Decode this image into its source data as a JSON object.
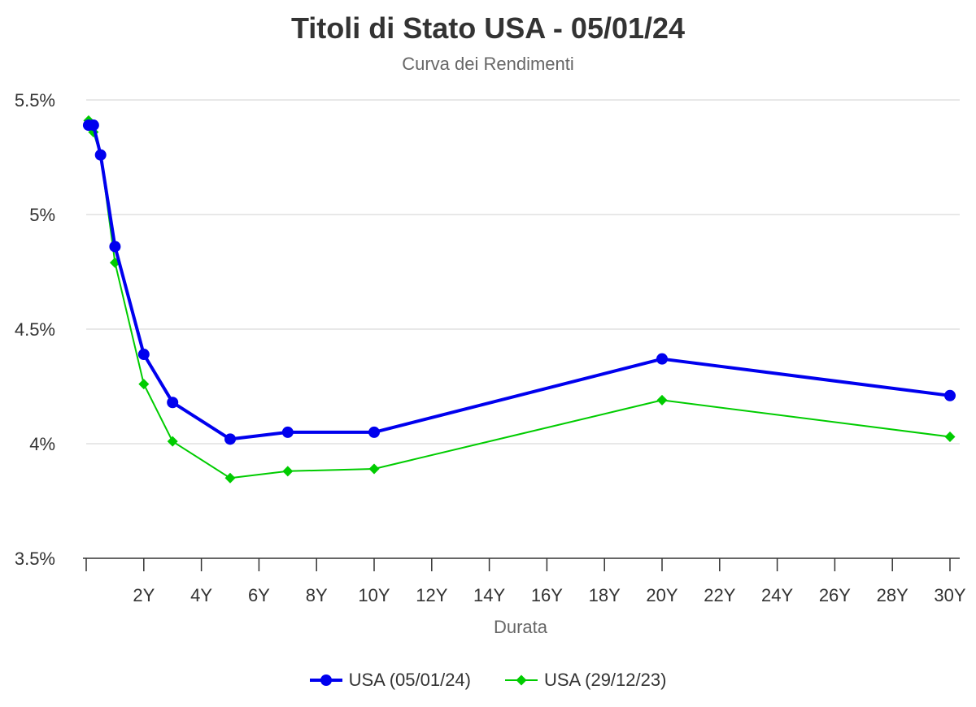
{
  "chart_data": {
    "type": "line",
    "title": "Titoli di Stato USA - 05/01/24",
    "subtitle": "Curva dei Rendimenti",
    "xlabel": "Durata",
    "ylabel": "",
    "x_tick_labels": [
      "2Y",
      "4Y",
      "6Y",
      "8Y",
      "10Y",
      "12Y",
      "14Y",
      "16Y",
      "18Y",
      "20Y",
      "22Y",
      "24Y",
      "26Y",
      "28Y",
      "30Y"
    ],
    "y_tick_labels": [
      "3.5%",
      "4%",
      "4.5%",
      "5%",
      "5.5%"
    ],
    "xlim": [
      0,
      30
    ],
    "ylim": [
      3.5,
      5.5
    ],
    "grid": true,
    "legend_position": "bottom",
    "series": [
      {
        "name": "USA (05/01/24)",
        "color": "#0000ee",
        "marker": "circle",
        "x": [
          0.083,
          0.25,
          0.5,
          1,
          2,
          3,
          5,
          7,
          10,
          20,
          30
        ],
        "y": [
          5.39,
          5.39,
          5.26,
          4.86,
          4.39,
          4.18,
          4.02,
          4.05,
          4.05,
          4.37,
          4.21
        ]
      },
      {
        "name": "USA (29/12/23)",
        "color": "#00cc00",
        "marker": "diamond",
        "x": [
          0.083,
          0.25,
          0.5,
          1,
          2,
          3,
          5,
          7,
          10,
          20,
          30
        ],
        "y": [
          5.41,
          5.36,
          5.26,
          4.79,
          4.26,
          4.01,
          3.85,
          3.88,
          3.89,
          4.19,
          4.03
        ]
      }
    ]
  }
}
